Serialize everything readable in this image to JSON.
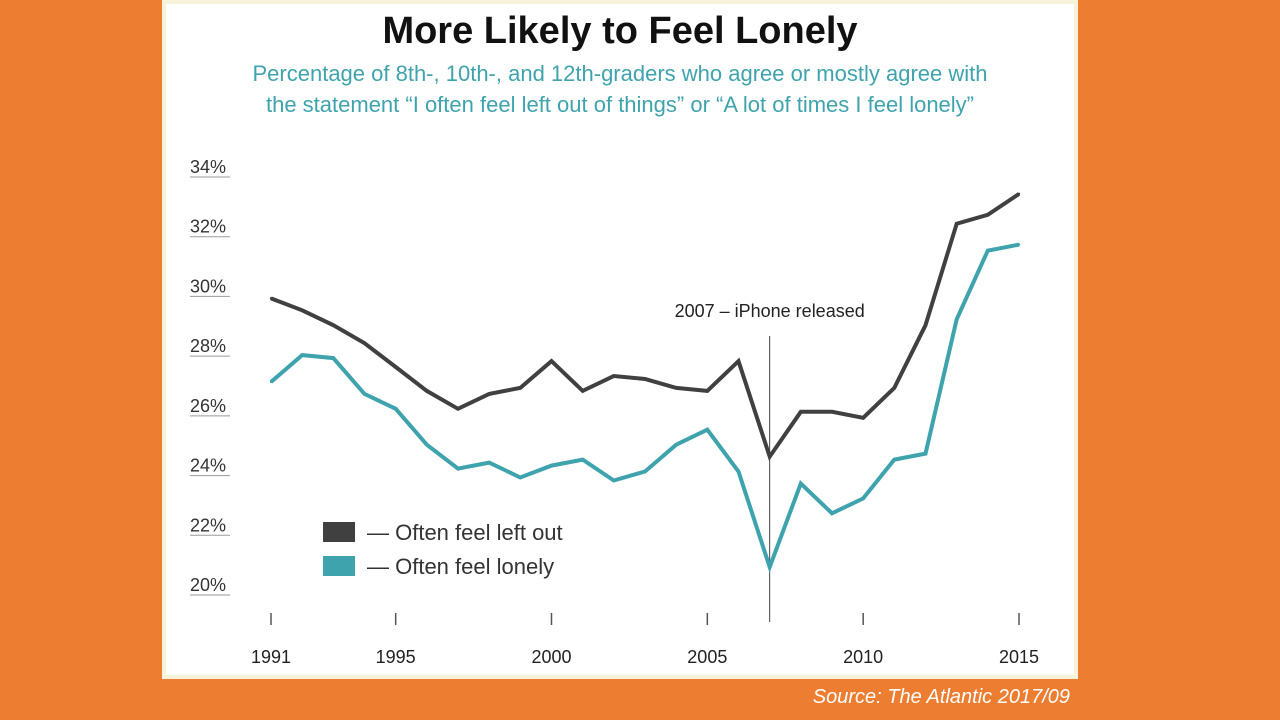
{
  "source": "Source: The Atlantic 2017/09",
  "colors": {
    "background": "#ED7D31",
    "panel": "#FFFFFF",
    "left_out": "#404040",
    "lonely": "#3FA3AE",
    "subtitle": "#3FA3AE"
  },
  "chart_data": {
    "type": "line",
    "title": "More Likely to Feel Lonely",
    "subtitle_lines": [
      "Percentage of 8th-, 10th-, and 12th-graders who agree or mostly agree with",
      "the statement “I often feel left out of things” or “A lot of times I feel lonely”"
    ],
    "xlabel": "",
    "ylabel": "",
    "x": [
      1991,
      1992,
      1993,
      1994,
      1995,
      1996,
      1997,
      1998,
      1999,
      2000,
      2001,
      2002,
      2003,
      2004,
      2005,
      2006,
      2007,
      2008,
      2009,
      2010,
      2011,
      2012,
      2013,
      2014,
      2015
    ],
    "xlim": [
      1991,
      2015
    ],
    "ylim": [
      20,
      34
    ],
    "x_ticks": [
      1991,
      1995,
      2000,
      2005,
      2010,
      2015
    ],
    "y_ticks": [
      20,
      22,
      24,
      26,
      28,
      30,
      32,
      34
    ],
    "y_tick_labels": [
      "20%",
      "22%",
      "24%",
      "26%",
      "28%",
      "30%",
      "32%",
      "34%"
    ],
    "grid": false,
    "legend_position": "bottom-left",
    "series": [
      {
        "name": "— Often feel left out",
        "color": "#404040",
        "values": [
          29.6,
          29.2,
          28.7,
          28.1,
          27.3,
          26.5,
          25.9,
          26.4,
          26.6,
          27.5,
          26.5,
          27.0,
          26.9,
          26.6,
          26.5,
          27.5,
          24.3,
          25.8,
          25.8,
          25.6,
          26.6,
          28.7,
          32.1,
          32.4,
          33.1
        ]
      },
      {
        "name": "— Often feel lonely",
        "color": "#3FA3AE",
        "values": [
          26.8,
          27.7,
          27.6,
          26.4,
          25.9,
          24.7,
          23.9,
          24.1,
          23.6,
          24.0,
          24.2,
          23.5,
          23.8,
          24.7,
          25.2,
          23.8,
          20.6,
          23.4,
          22.4,
          22.9,
          24.2,
          24.4,
          28.9,
          31.2,
          31.4
        ]
      }
    ],
    "annotations": [
      {
        "x": 2007,
        "text": "2007 – iPhone released"
      }
    ]
  }
}
